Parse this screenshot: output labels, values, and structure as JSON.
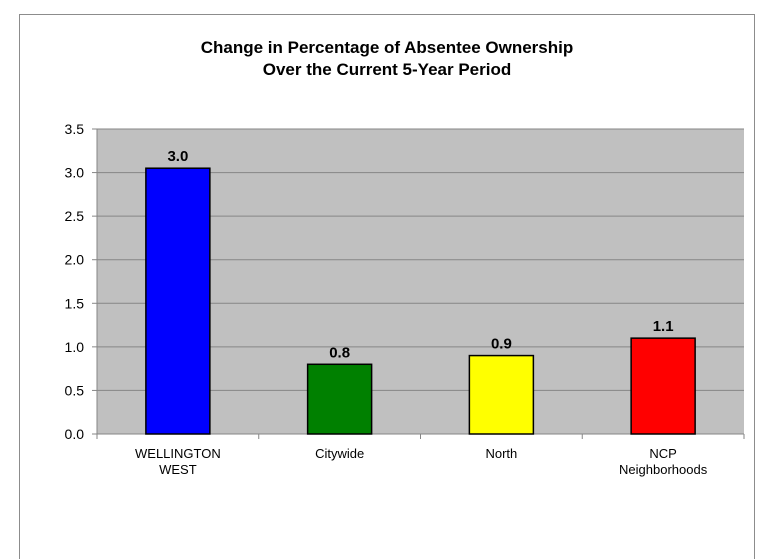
{
  "chart_data": {
    "type": "bar",
    "title": "Change in Percentage of Absentee Ownership",
    "subtitle": "Over the Current 5-Year Period",
    "categories": [
      [
        "WELLINGTON",
        "WEST"
      ],
      [
        "Citywide"
      ],
      [
        "North"
      ],
      [
        "NCP",
        "Neighborhoods"
      ]
    ],
    "values": [
      3.05,
      0.8,
      0.9,
      1.1
    ],
    "data_labels": [
      "3.0",
      "0.8",
      "0.9",
      "1.1"
    ],
    "colors": [
      "#0000ff",
      "#008000",
      "#ffff00",
      "#ff0000"
    ],
    "ylim": [
      0,
      3.5
    ],
    "yticks": [
      "0.0",
      "0.5",
      "1.0",
      "1.5",
      "2.0",
      "2.5",
      "3.0",
      "3.5"
    ],
    "grid": true,
    "plot_background": "#c0c0c0",
    "legend": "none"
  }
}
